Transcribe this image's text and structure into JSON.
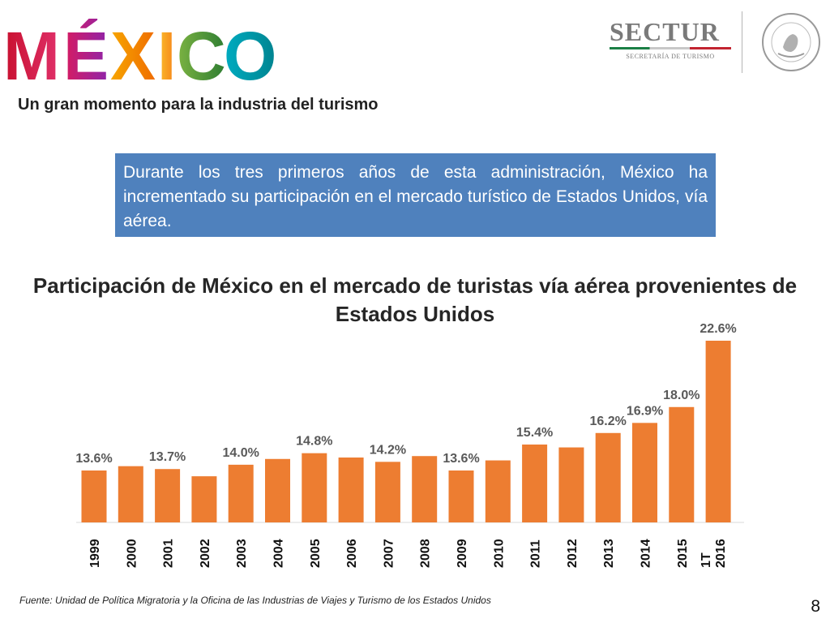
{
  "header": {
    "logo_text": "MÉXICO",
    "sectur_name": "SECTUR",
    "sectur_subtitle": "SECRETARÍA DE TURISMO",
    "seal_text": "ESTADOS UNIDOS MEXICANOS"
  },
  "subtitle": "Un gran momento para la industria del turismo",
  "callout": "Durante los tres primeros años de esta administración, México ha incrementado su participación en el mercado turístico de Estados Unidos, vía aérea.",
  "colors": {
    "bar": "#ed7d31",
    "callout_bg": "#4f81bd",
    "label": "#595959"
  },
  "chart_data": {
    "type": "bar",
    "title": "Participación de México en el mercado de turistas vía aérea provenientes de Estados Unidos",
    "categories": [
      "1999",
      "2000",
      "2001",
      "2002",
      "2003",
      "2004",
      "2005",
      "2006",
      "2007",
      "2008",
      "2009",
      "2010",
      "2011",
      "2012",
      "2013",
      "2014",
      "2015",
      "1T 2016"
    ],
    "values": [
      13.6,
      13.9,
      13.7,
      13.2,
      14.0,
      14.4,
      14.8,
      14.5,
      14.2,
      14.6,
      13.6,
      14.3,
      15.4,
      15.2,
      16.2,
      16.9,
      18.0,
      22.6
    ],
    "data_labels": [
      "13.6%",
      "",
      "13.7%",
      "",
      "14.0%",
      "",
      "14.8%",
      "",
      "14.2%",
      "",
      "13.6%",
      "",
      "15.4%",
      "",
      "16.2%",
      "16.9%",
      "18.0%",
      "22.6%"
    ],
    "ylim": [
      10,
      23
    ],
    "grid": false,
    "legend": "none"
  },
  "source": "Fuente: Unidad de Política Migratoria y la Oficina de las Industrias de Viajes y Turismo de los Estados Unidos",
  "page_number": "8"
}
